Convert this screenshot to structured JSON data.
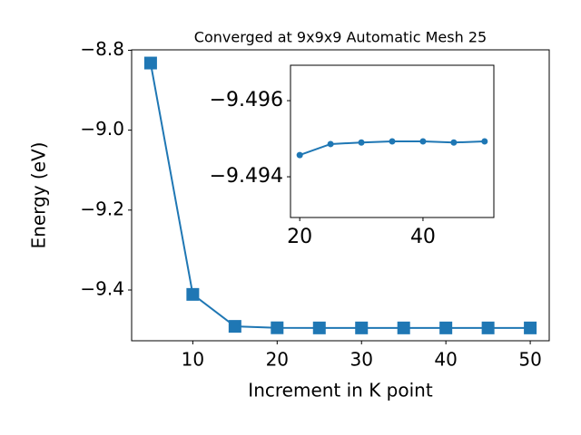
{
  "chart_data": [
    {
      "type": "line",
      "title": "Converged at 9x9x9 Automatic Mesh 25",
      "x_label": "Increment in K point",
      "y_label": "Energy (eV)",
      "x": [
        5,
        10,
        15,
        20,
        25,
        30,
        35,
        40,
        45,
        50
      ],
      "series": [
        {
          "color": "#1f77b4",
          "marker": "square",
          "values": [
            -8.832,
            -9.411,
            -9.491,
            -9.4946,
            -9.4949,
            -9.4949,
            -9.4949,
            -9.4949,
            -9.4949,
            -9.4949
          ]
        }
      ],
      "xlim": [
        2.75,
        52.25
      ],
      "xticks": [
        10,
        20,
        30,
        40,
        50
      ],
      "ylim": [
        -9.527,
        -8.799
      ],
      "yticks": [
        {
          "value": -9.4,
          "label": "−9.4"
        },
        {
          "value": -9.2,
          "label": "−9.2"
        },
        {
          "value": -9.0,
          "label": "−9.0"
        },
        {
          "value": -8.8,
          "label": "−8.8"
        }
      ]
    },
    {
      "type": "line",
      "x": [
        20,
        25,
        30,
        35,
        40,
        45,
        50
      ],
      "series": [
        {
          "color": "#1f77b4",
          "marker": "circle",
          "values": [
            -9.49457,
            -9.49486,
            -9.4949,
            -9.49493,
            -9.49493,
            -9.4949,
            -9.49493
          ]
        }
      ],
      "xlim": [
        18.5,
        51.5
      ],
      "xticks": [
        20,
        40
      ],
      "ylim": [
        -9.49293,
        -9.49693
      ],
      "yticks": [
        {
          "value": -9.494,
          "label": "−9.494"
        },
        {
          "value": -9.496,
          "label": "−9.496"
        }
      ]
    }
  ]
}
